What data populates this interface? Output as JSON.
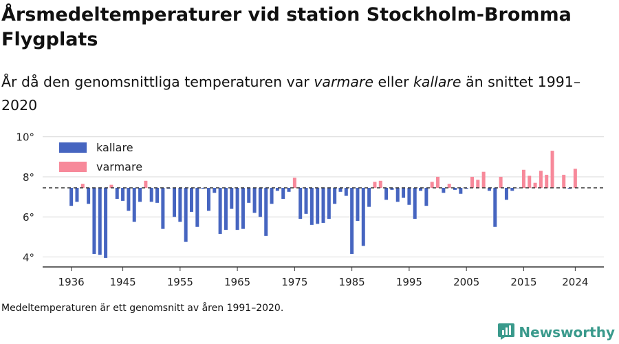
{
  "title": "Årsmedeltemperaturer vid station Stockholm-Bromma Flygplats",
  "subtitle": {
    "part1": "År då den genomsnittliga temperaturen var ",
    "warm_word": "varmare",
    "part2": " eller ",
    "cold_word": "kallare",
    "part3": " än snittet 1991–2020"
  },
  "footnote": "Medeltemperaturen är ett genomsnitt av åren 1991–2020.",
  "brand": "Newsworthy",
  "colors": {
    "cold": "#4665c0",
    "warm": "#f7899a",
    "brand": "#3a9a8c"
  },
  "chart_data": {
    "type": "bar",
    "baseline": 7.45,
    "ylim": [
      3.5,
      10.3
    ],
    "yticks": [
      4,
      6,
      8,
      10
    ],
    "ytick_labels": [
      "4°",
      "6°",
      "8°",
      "10°"
    ],
    "xticks": [
      1936,
      1945,
      1955,
      1965,
      1975,
      1985,
      1995,
      2005,
      2015,
      2024
    ],
    "xlim": [
      1931,
      2029
    ],
    "grid": true,
    "legend": {
      "placement": "top-left",
      "entries": [
        {
          "label": "kallare",
          "color": "cold"
        },
        {
          "label": "varmare",
          "color": "warm"
        }
      ]
    },
    "x": [
      1936,
      1937,
      1938,
      1939,
      1940,
      1941,
      1942,
      1943,
      1944,
      1945,
      1946,
      1947,
      1948,
      1949,
      1950,
      1951,
      1952,
      1953,
      1954,
      1955,
      1956,
      1957,
      1958,
      1959,
      1960,
      1961,
      1962,
      1963,
      1964,
      1965,
      1966,
      1967,
      1968,
      1969,
      1970,
      1971,
      1972,
      1973,
      1974,
      1975,
      1976,
      1977,
      1978,
      1979,
      1980,
      1981,
      1982,
      1983,
      1984,
      1985,
      1986,
      1987,
      1988,
      1989,
      1990,
      1991,
      1992,
      1993,
      1994,
      1995,
      1996,
      1997,
      1998,
      1999,
      2000,
      2001,
      2002,
      2003,
      2004,
      2005,
      2006,
      2007,
      2008,
      2009,
      2010,
      2011,
      2012,
      2013,
      2014,
      2015,
      2016,
      2017,
      2018,
      2019,
      2020,
      2021,
      2022,
      2023,
      2024
    ],
    "values": [
      6.55,
      6.75,
      7.65,
      6.65,
      4.15,
      4.1,
      3.95,
      7.6,
      6.9,
      6.8,
      6.3,
      5.75,
      6.75,
      7.8,
      6.75,
      6.7,
      5.4,
      7.4,
      6.0,
      5.75,
      4.75,
      6.25,
      5.5,
      7.4,
      6.3,
      7.2,
      5.15,
      5.35,
      6.4,
      5.35,
      5.4,
      6.7,
      6.2,
      6.0,
      5.05,
      6.65,
      7.3,
      6.9,
      7.25,
      7.95,
      5.9,
      6.15,
      5.6,
      5.65,
      5.7,
      5.9,
      6.65,
      7.25,
      7.05,
      4.15,
      5.8,
      4.55,
      6.5,
      7.75,
      7.8,
      6.85,
      7.35,
      6.75,
      6.95,
      6.6,
      5.9,
      7.3,
      6.55,
      7.75,
      8.0,
      7.2,
      7.65,
      7.35,
      7.15,
      7.4,
      8.0,
      7.85,
      8.25,
      7.3,
      5.5,
      8.0,
      6.85,
      7.3,
      7.45,
      8.35,
      8.05,
      7.7,
      8.3,
      8.1,
      9.3,
      7.45,
      8.1,
      7.4,
      8.4
    ]
  }
}
